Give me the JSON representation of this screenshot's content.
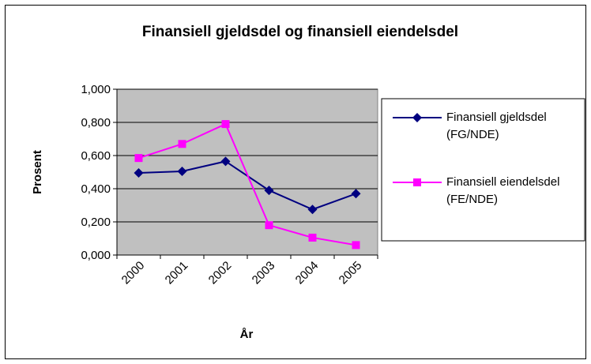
{
  "chart_data": {
    "type": "line",
    "title": "Finansiell gjeldsdel og finansiell eiendelsdel",
    "x_label": "År",
    "y_label": "Prosent",
    "categories": [
      "2000",
      "2001",
      "2002",
      "2003",
      "2004",
      "2005"
    ],
    "series": [
      {
        "name": "Finansiell gjeldsdel (FG/NDE)",
        "color": "#000080",
        "marker": "diamond",
        "values": [
          0.495,
          0.505,
          0.565,
          0.39,
          0.275,
          0.37
        ]
      },
      {
        "name": "Finansiell eiendelsdel (FE/NDE)",
        "color": "#ff00ff",
        "marker": "square",
        "values": [
          0.585,
          0.67,
          0.79,
          0.18,
          0.105,
          0.06
        ]
      }
    ],
    "ylim": [
      0,
      1
    ],
    "yticks": [
      {
        "value": 0,
        "label": "0,000"
      },
      {
        "value": 0.2,
        "label": "0,200"
      },
      {
        "value": 0.4,
        "label": "0,400"
      },
      {
        "value": 0.6,
        "label": "0,600"
      },
      {
        "value": 0.8,
        "label": "0,800"
      },
      {
        "value": 1,
        "label": "1,000"
      }
    ],
    "grid": true,
    "plot_background": "#c0c0c0",
    "legend": "right"
  }
}
